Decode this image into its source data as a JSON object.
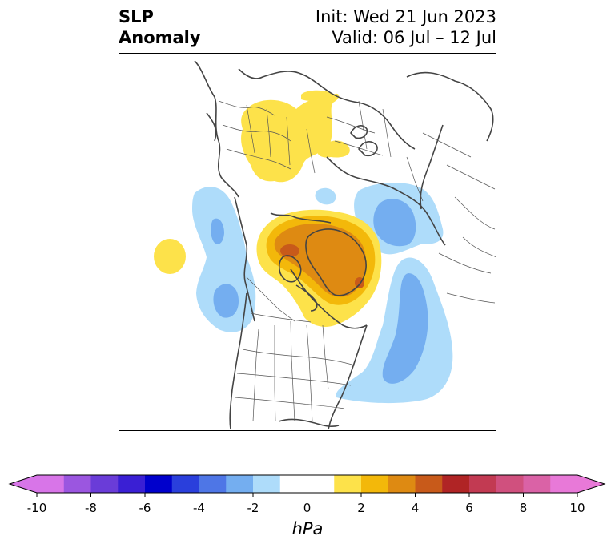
{
  "title": {
    "left_line1": "SLP",
    "left_line2": "Anomaly",
    "init": "Init: Wed 21 Jun 2023",
    "valid": "Valid: 06 Jul – 12 Jul"
  },
  "map": {
    "projection": "north-polar-stereographic",
    "variable": "SLP Anomaly",
    "features": [
      {
        "name": "positive-anomaly-greenland-arctic",
        "level_hPa": 5,
        "region": "Canadian Arctic / Greenland"
      },
      {
        "name": "positive-anomaly-eastern-europe",
        "level_hPa": 1,
        "region": "Eastern Europe / Western Russia"
      },
      {
        "name": "positive-anomaly-north-pacific",
        "level_hPa": 1,
        "region": "North Pacific"
      },
      {
        "name": "negative-anomaly-gulf-of-alaska",
        "level_hPa": -3,
        "region": "Gulf of Alaska"
      },
      {
        "name": "negative-anomaly-east-siberia",
        "level_hPa": -3,
        "region": "East Siberia / Laptev"
      },
      {
        "name": "negative-anomaly-north-atlantic",
        "level_hPa": -3,
        "region": "North Atlantic"
      }
    ]
  },
  "colorbar": {
    "unit_label": "hPa",
    "ticks": [
      "-10",
      "-8",
      "-6",
      "-4",
      "-2",
      "0",
      "2",
      "4",
      "6",
      "8",
      "10"
    ],
    "extend_low_color": "#d875e8",
    "extend_high_color": "#e879d8",
    "bins": [
      {
        "from": -10,
        "to": -9,
        "color": "#d875e8"
      },
      {
        "from": -9,
        "to": -8,
        "color": "#9b56e0"
      },
      {
        "from": -8,
        "to": -7,
        "color": "#6a3cd8"
      },
      {
        "from": -7,
        "to": -6,
        "color": "#3a1fd4"
      },
      {
        "from": -6,
        "to": -5,
        "color": "#0000cc"
      },
      {
        "from": -5,
        "to": -4,
        "color": "#2a3fdc"
      },
      {
        "from": -4,
        "to": -3,
        "color": "#4e76e6"
      },
      {
        "from": -3,
        "to": -2,
        "color": "#74aef0"
      },
      {
        "from": -2,
        "to": -1,
        "color": "#aedcfa"
      },
      {
        "from": -1,
        "to": 0,
        "color": "#ffffff"
      },
      {
        "from": 0,
        "to": 1,
        "color": "#ffffff"
      },
      {
        "from": 1,
        "to": 2,
        "color": "#fde24a"
      },
      {
        "from": 2,
        "to": 3,
        "color": "#f3b80a"
      },
      {
        "from": 3,
        "to": 4,
        "color": "#de8a12"
      },
      {
        "from": 4,
        "to": 5,
        "color": "#c85a1a"
      },
      {
        "from": 5,
        "to": 6,
        "color": "#b02425"
      },
      {
        "from": 6,
        "to": 7,
        "color": "#c23a52"
      },
      {
        "from": 7,
        "to": 8,
        "color": "#d0507e"
      },
      {
        "from": 8,
        "to": 9,
        "color": "#da62a6"
      },
      {
        "from": 9,
        "to": 10,
        "color": "#e879d8"
      }
    ]
  },
  "colors": {
    "coastline": "#444444",
    "frame": "#000000",
    "ocean_land": "#ffffff"
  }
}
